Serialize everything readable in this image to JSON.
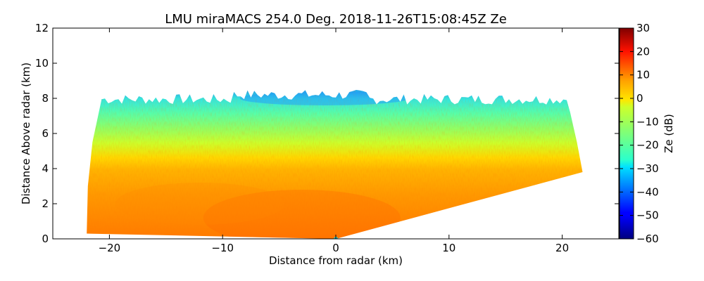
{
  "chart_data": {
    "type": "heatmap",
    "title": "LMU miraMACS 254.0 Deg. 2018-11-26T15:08:45Z  Ze",
    "xlabel": "Distance from radar (km)",
    "ylabel": "Distance Above radar  (km)",
    "xlim": [
      -25,
      25
    ],
    "ylim": [
      0,
      12
    ],
    "xticks": [
      -20,
      -10,
      0,
      10,
      20
    ],
    "xtick_labels": [
      "−20",
      "−10",
      "0",
      "10",
      "20"
    ],
    "yticks": [
      0,
      2,
      4,
      6,
      8,
      10,
      12
    ],
    "ytick_labels": [
      "0",
      "2",
      "4",
      "6",
      "8",
      "10",
      "12"
    ],
    "colorbar": {
      "label": "Ze (dB)",
      "range": [
        -60,
        30
      ],
      "ticks": [
        30,
        20,
        10,
        0,
        -10,
        -20,
        -30,
        -40,
        -50,
        -60
      ],
      "tick_labels": [
        "30",
        "20",
        "10",
        "0",
        "−10",
        "−20",
        "−30",
        "−40",
        "−50",
        "−60"
      ],
      "colormap": "jet"
    },
    "scan": {
      "type": "RHI",
      "azimuth_deg": 254.0,
      "radar_position_km": [
        0,
        0
      ],
      "left_extent_km": -22,
      "right_extent_km": 21.8,
      "right_top_height_km": 3.8,
      "cloud_top_height_km": 8,
      "echo_profile": [
        {
          "height_km": 0.0,
          "ze_db": 12
        },
        {
          "height_km": 1.5,
          "ze_db": 11
        },
        {
          "height_km": 3.0,
          "ze_db": 7
        },
        {
          "height_km": 4.0,
          "ze_db": 2
        },
        {
          "height_km": 5.0,
          "ze_db": -5
        },
        {
          "height_km": 6.0,
          "ze_db": -13
        },
        {
          "height_km": 7.0,
          "ze_db": -20
        },
        {
          "height_km": 8.0,
          "ze_db": -30
        }
      ]
    }
  }
}
